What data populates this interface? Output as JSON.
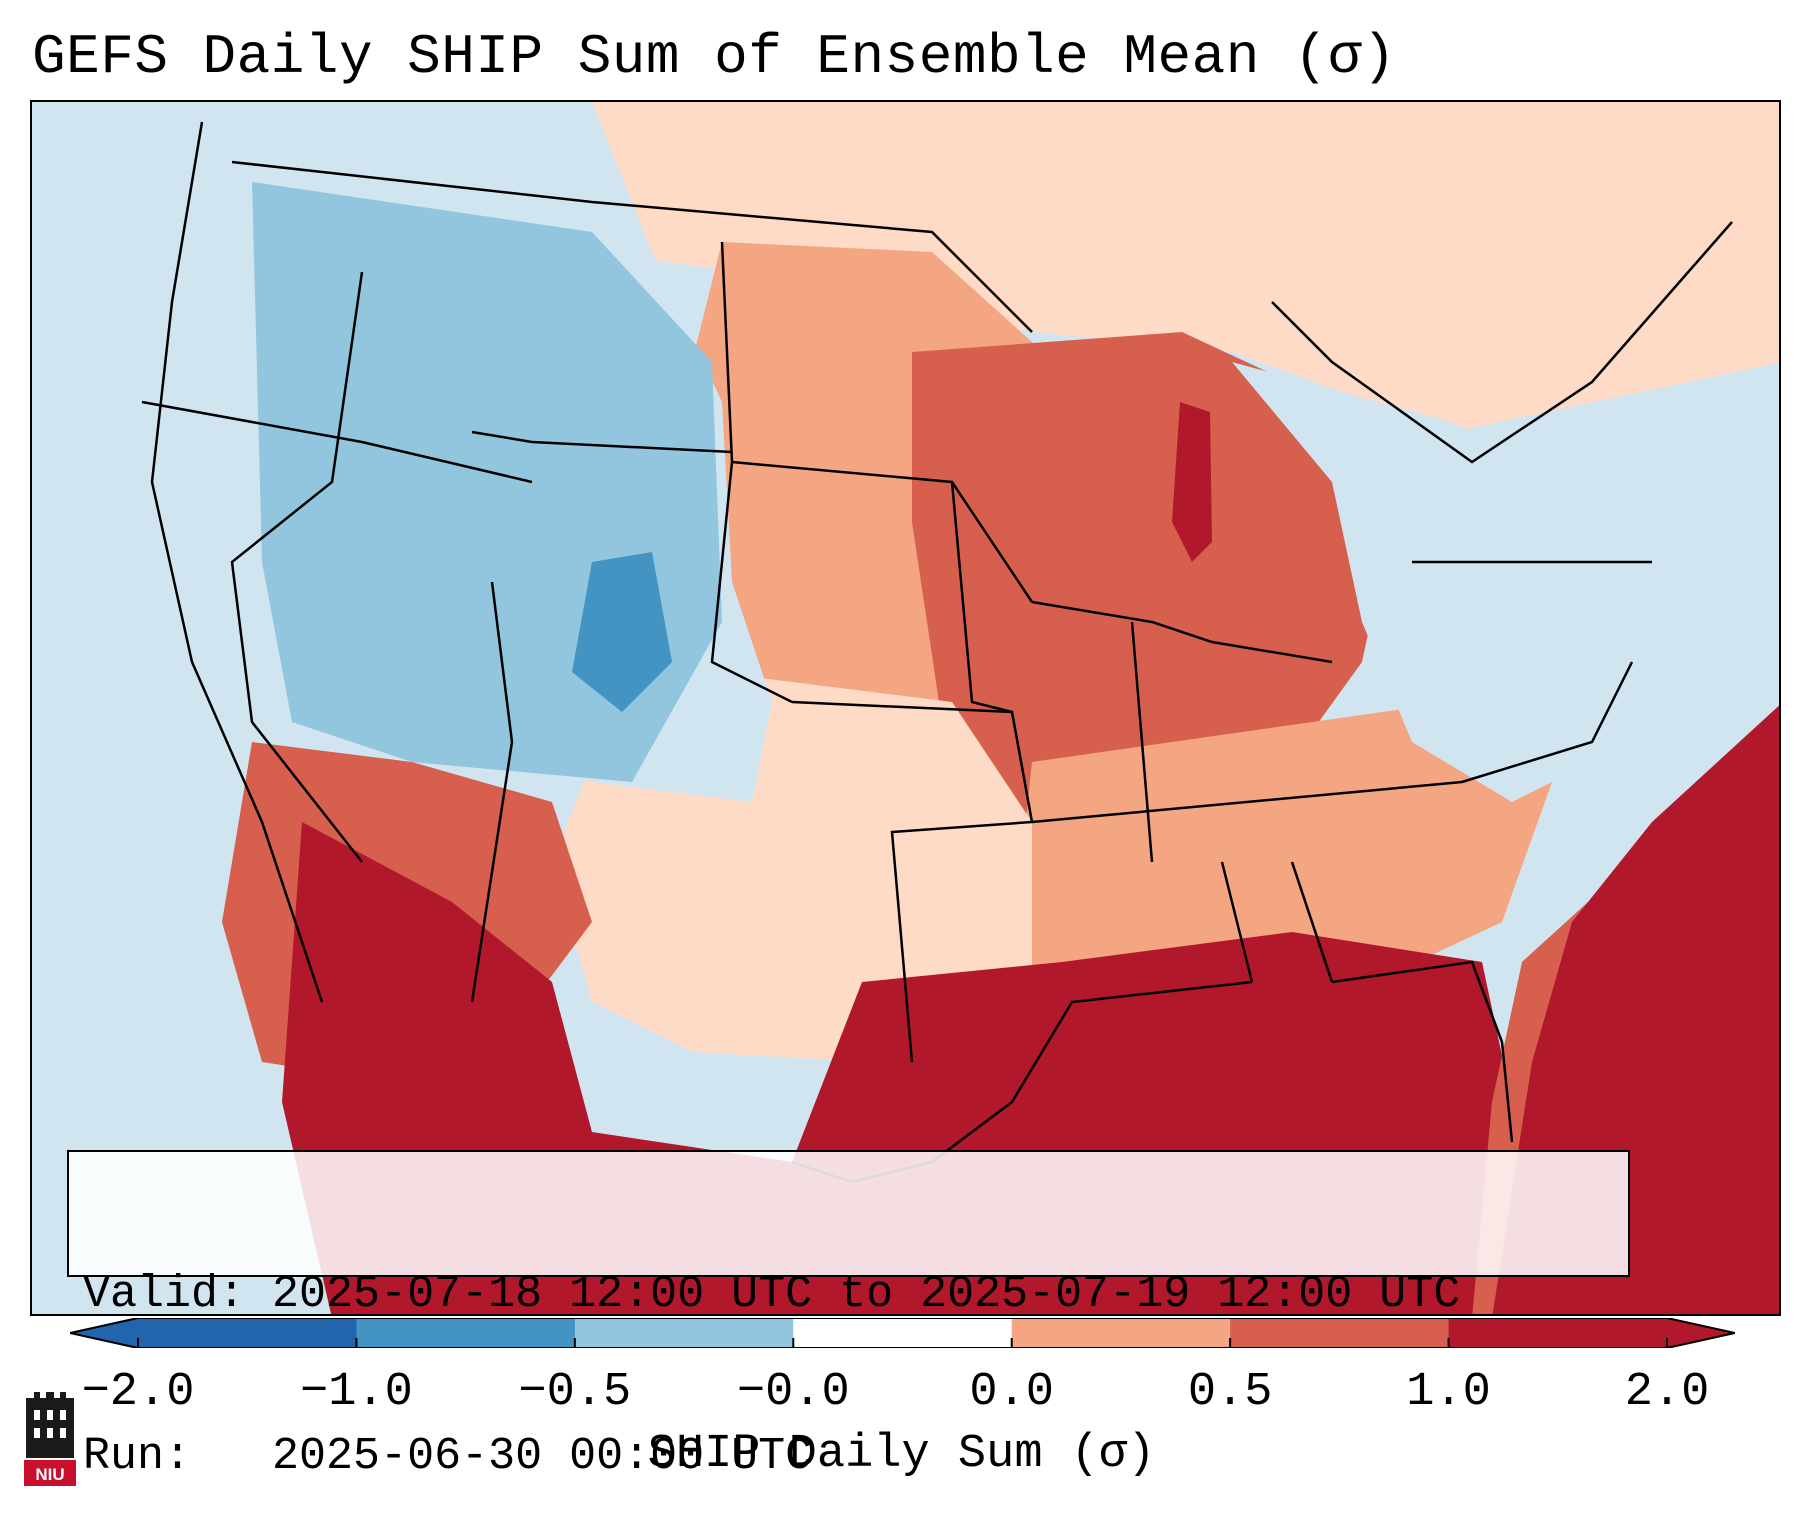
{
  "title": "GEFS Daily SHIP Sum of Ensemble Mean (σ)",
  "info": {
    "valid_label": "Valid:",
    "valid_value": "2025-07-18 12:00 UTC to 2025-07-19 12:00 UTC",
    "run_label": "Run:",
    "run_value": "2025-06-30 00:00 UTC"
  },
  "colorbar": {
    "label": "SHIP Daily Sum (σ)",
    "ticks": [
      "−2.0",
      "−1.0",
      "−0.5",
      "−0.0",
      "0.0",
      "0.5",
      "1.0",
      "2.0"
    ],
    "colors": [
      "#2166ac",
      "#4393c3",
      "#92c5de",
      "#d1e5f0",
      "#fddbc7",
      "#f4a582",
      "#d6604d",
      "#b2182b"
    ],
    "extend": "both"
  },
  "logo": {
    "text": "NIU",
    "colors": {
      "tower": "#1a1a1a",
      "badge": "#c8102e"
    }
  },
  "map_regions": {
    "ocean_west": "#d1e5f0",
    "pacific_nw": "#d1e5f0",
    "rockies_core": "#92c5de",
    "colorado_center": "#4393c3",
    "southwest": "#d6604d",
    "mexico": "#b2182b",
    "plains_north": "#f4a582",
    "midwest": "#d6604d",
    "lake_michigan": "#b2182b",
    "gulf_of_mexico": "#b2182b",
    "atlantic_se": "#b2182b",
    "atlantic_band": "#d6604d",
    "northeast": "#d1e5f0",
    "southeast": "#f4a582",
    "texas_west": "#fddbc7",
    "canada_north": "#fddbc7",
    "great_basin": "#92c5de"
  }
}
